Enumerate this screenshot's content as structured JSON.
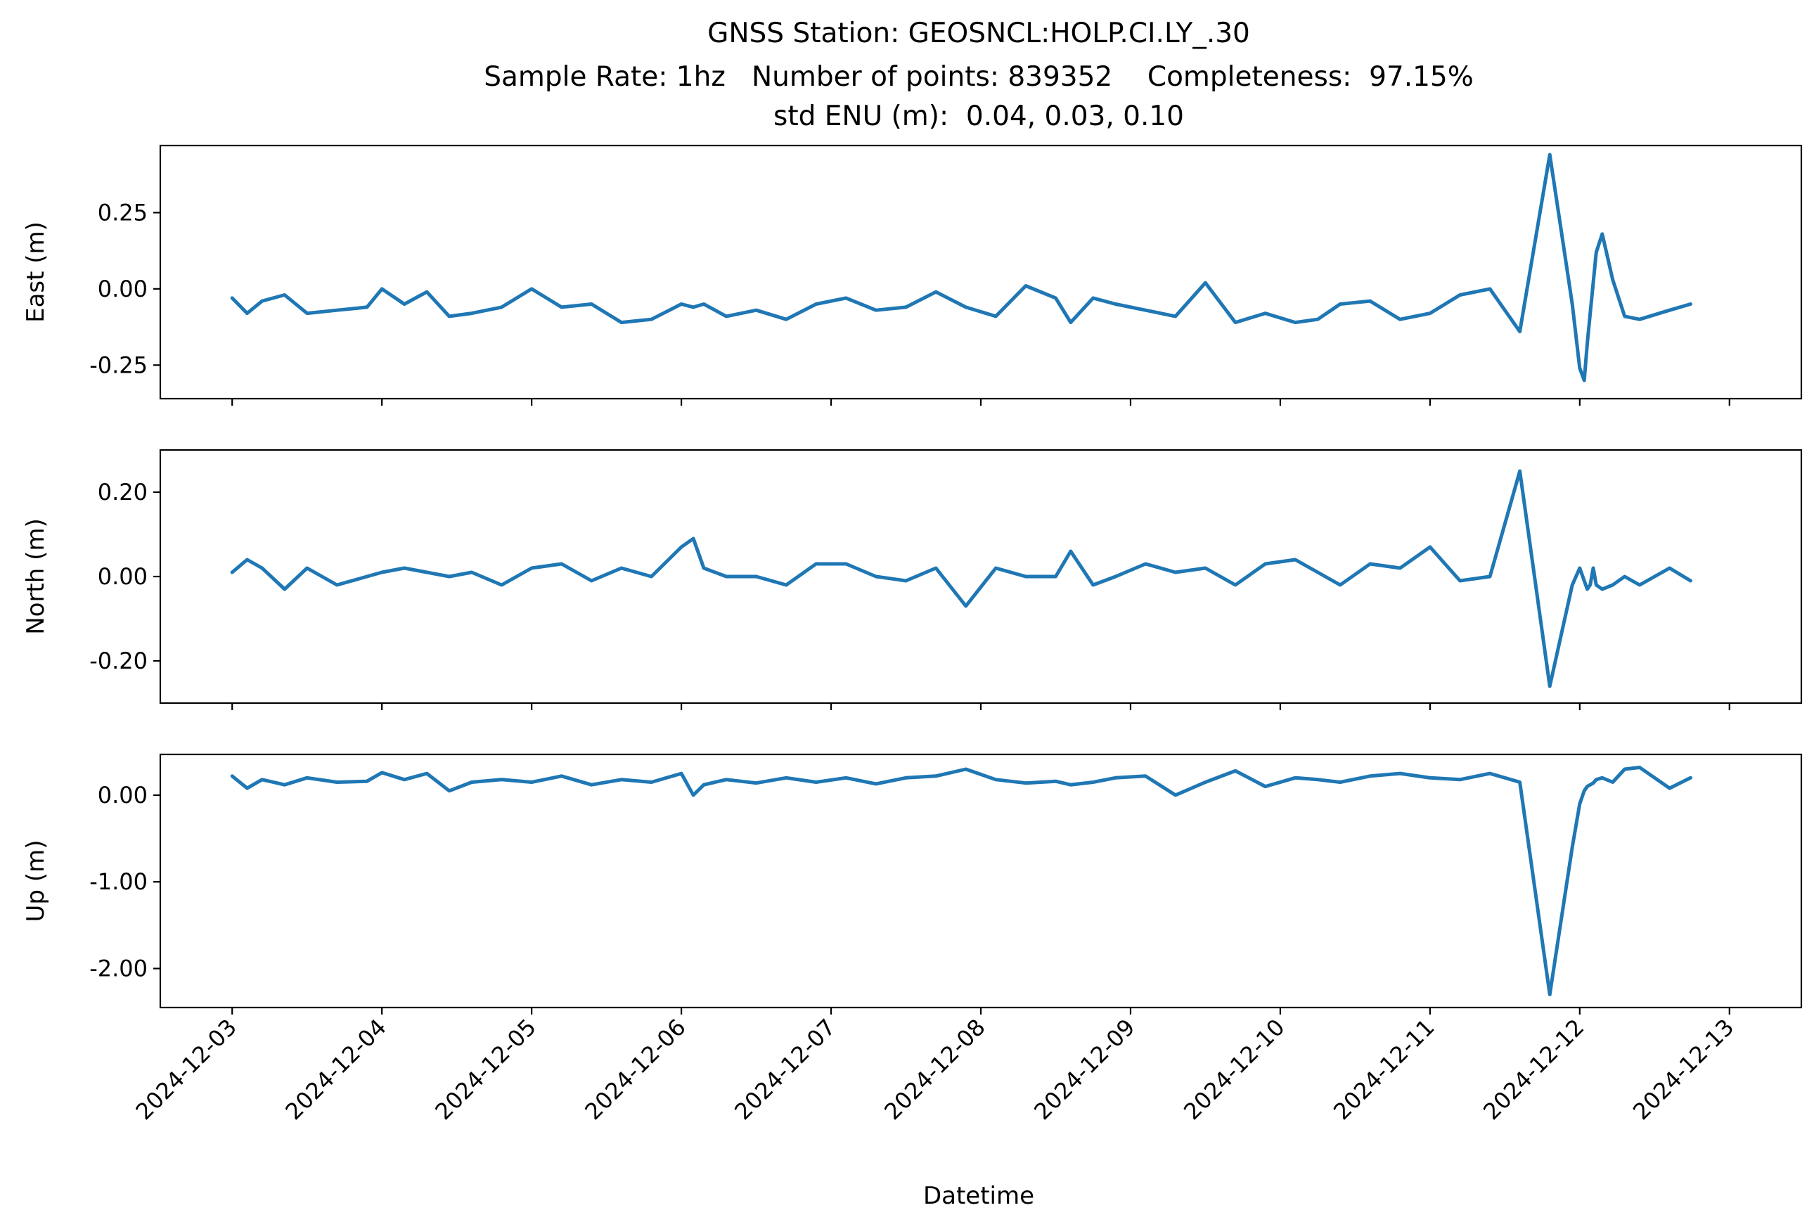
{
  "chart_data": {
    "type": "line",
    "title_lines": [
      "GNSS Station: GEOSNCL:HOLP.CI.LY_.30",
      "Sample Rate: 1hz   Number of points: 839352    Completeness:  97.15%",
      "std ENU (m):  0.04, 0.03, 0.10"
    ],
    "xlabel": "Datetime",
    "x_unit": "days since 2024-12-03 00:00",
    "xlim": [
      -0.48,
      10.48
    ],
    "x_tick_values": [
      0,
      1,
      2,
      3,
      4,
      5,
      6,
      7,
      8,
      9,
      10
    ],
    "x_tick_labels": [
      "2024-12-03",
      "2024-12-04",
      "2024-12-05",
      "2024-12-06",
      "2024-12-07",
      "2024-12-08",
      "2024-12-09",
      "2024-12-10",
      "2024-12-11",
      "2024-12-12",
      "2024-12-13"
    ],
    "line_color": "#1f77b4",
    "x": [
      0,
      0.1,
      0.2,
      0.35,
      0.5,
      0.7,
      0.9,
      1.0,
      1.15,
      1.3,
      1.45,
      1.6,
      1.8,
      2.0,
      2.2,
      2.4,
      2.6,
      2.8,
      3.0,
      3.08,
      3.15,
      3.3,
      3.5,
      3.7,
      3.9,
      4.1,
      4.3,
      4.5,
      4.7,
      4.9,
      5.1,
      5.3,
      5.5,
      5.6,
      5.75,
      5.9,
      6.1,
      6.3,
      6.5,
      6.7,
      6.9,
      7.1,
      7.25,
      7.4,
      7.6,
      7.8,
      8.0,
      8.2,
      8.4,
      8.6,
      8.8,
      8.95,
      9.0,
      9.03,
      9.05,
      9.07,
      9.09,
      9.11,
      9.15,
      9.22,
      9.3,
      9.4,
      9.6,
      9.74
    ],
    "series": [
      {
        "name": "",
        "ylabel": "East (m)",
        "y_tick_values": [
          0.25,
          0.0,
          -0.25
        ],
        "y_tick_labels": [
          "0.25",
          "0.00",
          "-0.25"
        ],
        "ylim": [
          -0.36,
          0.47
        ],
        "values": [
          -0.03,
          -0.08,
          -0.04,
          -0.02,
          -0.08,
          -0.07,
          -0.06,
          0.0,
          -0.05,
          -0.01,
          -0.09,
          -0.08,
          -0.06,
          0.0,
          -0.06,
          -0.05,
          -0.11,
          -0.1,
          -0.05,
          -0.06,
          -0.05,
          -0.09,
          -0.07,
          -0.1,
          -0.05,
          -0.03,
          -0.07,
          -0.06,
          -0.01,
          -0.06,
          -0.09,
          0.01,
          -0.03,
          -0.11,
          -0.03,
          -0.05,
          -0.07,
          -0.09,
          0.02,
          -0.11,
          -0.08,
          -0.11,
          -0.1,
          -0.05,
          -0.04,
          -0.1,
          -0.08,
          -0.02,
          0.0,
          -0.14,
          0.44,
          -0.05,
          -0.26,
          -0.3,
          -0.18,
          -0.08,
          0.02,
          0.12,
          0.18,
          0.03,
          -0.09,
          -0.1,
          -0.07,
          -0.05
        ]
      },
      {
        "name": "",
        "ylabel": "North (m)",
        "y_tick_values": [
          0.2,
          0.0,
          -0.2
        ],
        "y_tick_labels": [
          "0.20",
          "0.00",
          "-0.20"
        ],
        "ylim": [
          -0.3,
          0.3
        ],
        "values": [
          0.01,
          0.04,
          0.02,
          -0.03,
          0.02,
          -0.02,
          0.0,
          0.01,
          0.02,
          0.01,
          0.0,
          0.01,
          -0.02,
          0.02,
          0.03,
          -0.01,
          0.02,
          0.0,
          0.07,
          0.09,
          0.02,
          0.0,
          0.0,
          -0.02,
          0.03,
          0.03,
          0.0,
          -0.01,
          0.02,
          -0.07,
          0.02,
          0.0,
          0.0,
          0.06,
          -0.02,
          0.0,
          0.03,
          0.01,
          0.02,
          -0.02,
          0.03,
          0.04,
          0.01,
          -0.02,
          0.03,
          0.02,
          0.07,
          -0.01,
          0.0,
          0.25,
          -0.26,
          -0.02,
          0.02,
          -0.01,
          -0.03,
          -0.02,
          0.02,
          -0.02,
          -0.03,
          -0.02,
          0.0,
          -0.02,
          0.02,
          -0.01
        ]
      },
      {
        "name": "",
        "ylabel": "Up (m)",
        "y_tick_values": [
          0.0,
          -1.0,
          -2.0
        ],
        "y_tick_labels": [
          "0.00",
          "-1.00",
          "-2.00"
        ],
        "ylim": [
          -2.45,
          0.47
        ],
        "values": [
          0.22,
          0.08,
          0.18,
          0.12,
          0.2,
          0.15,
          0.16,
          0.26,
          0.18,
          0.25,
          0.05,
          0.15,
          0.18,
          0.15,
          0.22,
          0.12,
          0.18,
          0.15,
          0.25,
          0.0,
          0.12,
          0.18,
          0.14,
          0.2,
          0.15,
          0.2,
          0.13,
          0.2,
          0.22,
          0.3,
          0.18,
          0.14,
          0.16,
          0.12,
          0.15,
          0.2,
          0.22,
          0.0,
          0.15,
          0.28,
          0.1,
          0.2,
          0.18,
          0.15,
          0.22,
          0.25,
          0.2,
          0.18,
          0.25,
          0.15,
          -2.3,
          -0.6,
          -0.1,
          0.05,
          0.1,
          0.12,
          0.14,
          0.18,
          0.2,
          0.15,
          0.3,
          0.32,
          0.08,
          0.2
        ]
      }
    ]
  }
}
